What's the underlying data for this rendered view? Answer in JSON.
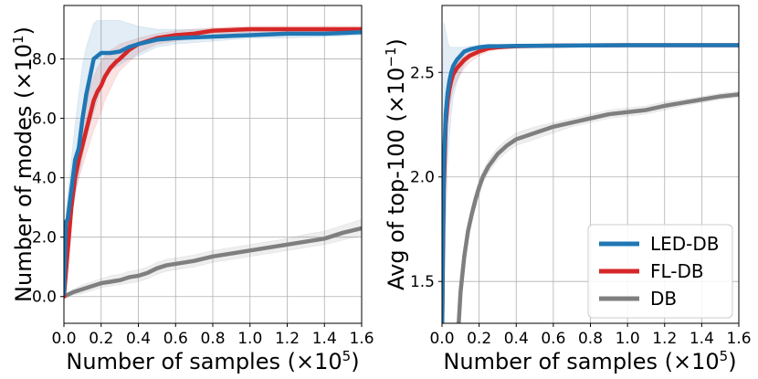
{
  "chart_data": [
    {
      "type": "line",
      "title": "",
      "xlabel": "Number of samples",
      "xlabel_multiplier": "(×10",
      "xlabel_exp": "5",
      "ylabel": "Number of modes",
      "ylabel_multiplier": "(×10",
      "ylabel_exp": "1",
      "xlim": [
        0.0,
        1.6
      ],
      "ylim": [
        -0.9,
        9.8
      ],
      "xticks": [
        "0.0",
        "0.2",
        "0.4",
        "0.6",
        "0.8",
        "1.0",
        "1.2",
        "1.4",
        "1.6"
      ],
      "yticks": [
        "0.0",
        "2.0",
        "4.0",
        "6.0",
        "8.0"
      ],
      "grid": true,
      "series": [
        {
          "name": "LED-DB",
          "color": "#1f77b4",
          "x": [
            0.0,
            0.01,
            0.02,
            0.04,
            0.06,
            0.08,
            0.1,
            0.12,
            0.14,
            0.16,
            0.18,
            0.2,
            0.22,
            0.25,
            0.3,
            0.35,
            0.4,
            0.5,
            0.6,
            0.8,
            1.0,
            1.2,
            1.4,
            1.6
          ],
          "values": [
            0.1,
            2.5,
            2.6,
            3.6,
            4.6,
            5.0,
            6.0,
            6.8,
            7.4,
            8.0,
            8.1,
            8.2,
            8.2,
            8.2,
            8.25,
            8.4,
            8.5,
            8.65,
            8.7,
            8.75,
            8.8,
            8.85,
            8.85,
            8.9
          ],
          "band_upper": [
            0.3,
            2.7,
            3.4,
            4.6,
            5.8,
            6.8,
            7.8,
            8.4,
            8.8,
            9.2,
            9.3,
            9.3,
            9.3,
            9.3,
            9.3,
            9.2,
            9.1,
            9.0,
            9.0,
            9.0,
            9.0,
            9.0,
            9.0,
            9.0
          ],
          "band_lower": [
            0.0,
            0.8,
            1.6,
            2.6,
            3.4,
            4.0,
            4.7,
            5.3,
            5.8,
            6.2,
            6.6,
            7.0,
            7.3,
            7.6,
            7.8,
            8.0,
            8.1,
            8.4,
            8.5,
            8.6,
            8.7,
            8.7,
            8.75,
            8.8
          ]
        },
        {
          "name": "FL-DB",
          "color": "#d62728",
          "x": [
            0.0,
            0.02,
            0.04,
            0.06,
            0.08,
            0.1,
            0.12,
            0.14,
            0.16,
            0.18,
            0.2,
            0.22,
            0.25,
            0.28,
            0.3,
            0.35,
            0.4,
            0.5,
            0.6,
            0.7,
            0.8,
            1.0,
            1.2,
            1.6
          ],
          "values": [
            0.0,
            1.5,
            3.0,
            4.0,
            4.6,
            5.1,
            5.6,
            6.1,
            6.6,
            6.9,
            7.1,
            7.4,
            7.7,
            7.9,
            8.0,
            8.3,
            8.5,
            8.7,
            8.8,
            8.85,
            8.95,
            9.0,
            9.0,
            9.0
          ],
          "band_upper": [
            0.1,
            1.8,
            3.4,
            4.5,
            5.2,
            5.8,
            6.4,
            7.0,
            7.4,
            7.7,
            7.9,
            8.1,
            8.3,
            8.4,
            8.5,
            8.6,
            8.7,
            8.85,
            8.95,
            9.0,
            9.05,
            9.1,
            9.1,
            9.1
          ],
          "band_lower": [
            0.0,
            1.2,
            2.6,
            3.5,
            4.0,
            4.4,
            4.8,
            5.2,
            5.6,
            5.9,
            6.2,
            6.6,
            7.0,
            7.4,
            7.6,
            7.9,
            8.2,
            8.5,
            8.6,
            8.7,
            8.8,
            8.9,
            8.9,
            8.9
          ]
        },
        {
          "name": "DB",
          "color": "#7f7f7f",
          "x": [
            0.0,
            0.05,
            0.1,
            0.15,
            0.2,
            0.25,
            0.3,
            0.35,
            0.4,
            0.45,
            0.5,
            0.55,
            0.6,
            0.7,
            0.8,
            0.9,
            1.0,
            1.1,
            1.2,
            1.3,
            1.4,
            1.5,
            1.6
          ],
          "values": [
            0.0,
            0.15,
            0.25,
            0.35,
            0.45,
            0.5,
            0.55,
            0.65,
            0.7,
            0.8,
            0.95,
            1.05,
            1.1,
            1.2,
            1.35,
            1.45,
            1.55,
            1.65,
            1.75,
            1.85,
            1.95,
            2.15,
            2.3
          ],
          "band_upper": [
            0.0,
            0.25,
            0.4,
            0.5,
            0.6,
            0.7,
            0.75,
            0.85,
            0.9,
            1.0,
            1.15,
            1.25,
            1.3,
            1.4,
            1.55,
            1.65,
            1.75,
            1.85,
            1.95,
            2.1,
            2.2,
            2.4,
            2.6
          ],
          "band_lower": [
            0.0,
            0.05,
            0.1,
            0.2,
            0.3,
            0.35,
            0.4,
            0.45,
            0.5,
            0.6,
            0.75,
            0.85,
            0.9,
            1.0,
            1.15,
            1.25,
            1.35,
            1.45,
            1.55,
            1.65,
            1.75,
            1.9,
            2.05
          ]
        }
      ]
    },
    {
      "type": "line",
      "title": "",
      "xlabel": "Number of samples",
      "xlabel_multiplier": "(×10",
      "xlabel_exp": "5",
      "ylabel": "Avg of top-100",
      "ylabel_multiplier": "(×10",
      "ylabel_exp": "−1",
      "xlim": [
        0.0,
        1.6
      ],
      "ylim": [
        1.3,
        2.82
      ],
      "xticks": [
        "0.0",
        "0.2",
        "0.4",
        "0.6",
        "0.8",
        "1.0",
        "1.2",
        "1.4",
        "1.6"
      ],
      "yticks": [
        "1.5",
        "2.0",
        "2.5"
      ],
      "grid": true,
      "legend_position": "bottom-right",
      "series": [
        {
          "name": "LED-DB",
          "color": "#1f77b4",
          "x": [
            0.0,
            0.005,
            0.01,
            0.02,
            0.03,
            0.04,
            0.05,
            0.06,
            0.08,
            0.1,
            0.12,
            0.15,
            0.2,
            0.25,
            0.3,
            0.4,
            0.6,
            1.0,
            1.6
          ],
          "values": [
            1.2,
            1.7,
            2.05,
            2.3,
            2.4,
            2.46,
            2.5,
            2.53,
            2.56,
            2.58,
            2.6,
            2.61,
            2.62,
            2.625,
            2.625,
            2.627,
            2.628,
            2.63,
            2.63
          ],
          "band_upper": [
            2.2,
            2.6,
            2.74,
            2.7,
            2.65,
            2.62,
            2.62,
            2.62,
            2.62,
            2.62,
            2.62,
            2.625,
            2.63,
            2.63,
            2.63,
            2.63,
            2.632,
            2.633,
            2.633
          ],
          "band_lower": [
            1.1,
            1.2,
            1.3,
            1.75,
            2.05,
            2.2,
            2.3,
            2.38,
            2.45,
            2.5,
            2.54,
            2.57,
            2.6,
            2.61,
            2.615,
            2.62,
            2.624,
            2.627,
            2.627
          ]
        },
        {
          "name": "FL-DB",
          "color": "#d62728",
          "x": [
            0.0,
            0.005,
            0.01,
            0.02,
            0.03,
            0.04,
            0.05,
            0.06,
            0.08,
            0.1,
            0.12,
            0.15,
            0.2,
            0.25,
            0.3,
            0.4,
            0.6,
            1.0,
            1.6
          ],
          "values": [
            1.2,
            1.65,
            1.95,
            2.25,
            2.36,
            2.42,
            2.46,
            2.49,
            2.52,
            2.54,
            2.56,
            2.58,
            2.6,
            2.615,
            2.62,
            2.625,
            2.628,
            2.63,
            2.63
          ],
          "band_upper": [
            1.5,
            1.9,
            2.1,
            2.35,
            2.44,
            2.49,
            2.52,
            2.54,
            2.56,
            2.58,
            2.6,
            2.61,
            2.62,
            2.625,
            2.628,
            2.63,
            2.632,
            2.633,
            2.633
          ],
          "band_lower": [
            1.1,
            1.4,
            1.75,
            2.1,
            2.25,
            2.33,
            2.38,
            2.42,
            2.46,
            2.49,
            2.52,
            2.55,
            2.58,
            2.6,
            2.61,
            2.62,
            2.624,
            2.627,
            2.627
          ]
        },
        {
          "name": "DB",
          "color": "#7f7f7f",
          "x": [
            0.09,
            0.1,
            0.12,
            0.14,
            0.16,
            0.18,
            0.2,
            0.22,
            0.25,
            0.3,
            0.35,
            0.4,
            0.5,
            0.6,
            0.7,
            0.8,
            0.9,
            1.0,
            1.1,
            1.2,
            1.3,
            1.4,
            1.5,
            1.6
          ],
          "values": [
            1.3,
            1.45,
            1.62,
            1.74,
            1.82,
            1.89,
            1.95,
            2.0,
            2.05,
            2.11,
            2.15,
            2.18,
            2.21,
            2.24,
            2.26,
            2.28,
            2.3,
            2.31,
            2.32,
            2.34,
            2.355,
            2.37,
            2.385,
            2.395
          ],
          "band_upper": [
            1.35,
            1.5,
            1.67,
            1.78,
            1.86,
            1.93,
            1.98,
            2.03,
            2.08,
            2.14,
            2.18,
            2.21,
            2.24,
            2.26,
            2.28,
            2.3,
            2.32,
            2.33,
            2.34,
            2.36,
            2.37,
            2.385,
            2.4,
            2.41
          ],
          "band_lower": [
            1.25,
            1.4,
            1.57,
            1.7,
            1.78,
            1.85,
            1.91,
            1.97,
            2.02,
            2.08,
            2.12,
            2.15,
            2.18,
            2.21,
            2.24,
            2.26,
            2.28,
            2.29,
            2.3,
            2.32,
            2.34,
            2.355,
            2.37,
            2.38
          ]
        }
      ]
    }
  ],
  "legend": {
    "items": [
      {
        "label": "LED-DB",
        "color": "#1f77b4"
      },
      {
        "label": "FL-DB",
        "color": "#d62728"
      },
      {
        "label": "DB",
        "color": "#7f7f7f"
      }
    ]
  }
}
